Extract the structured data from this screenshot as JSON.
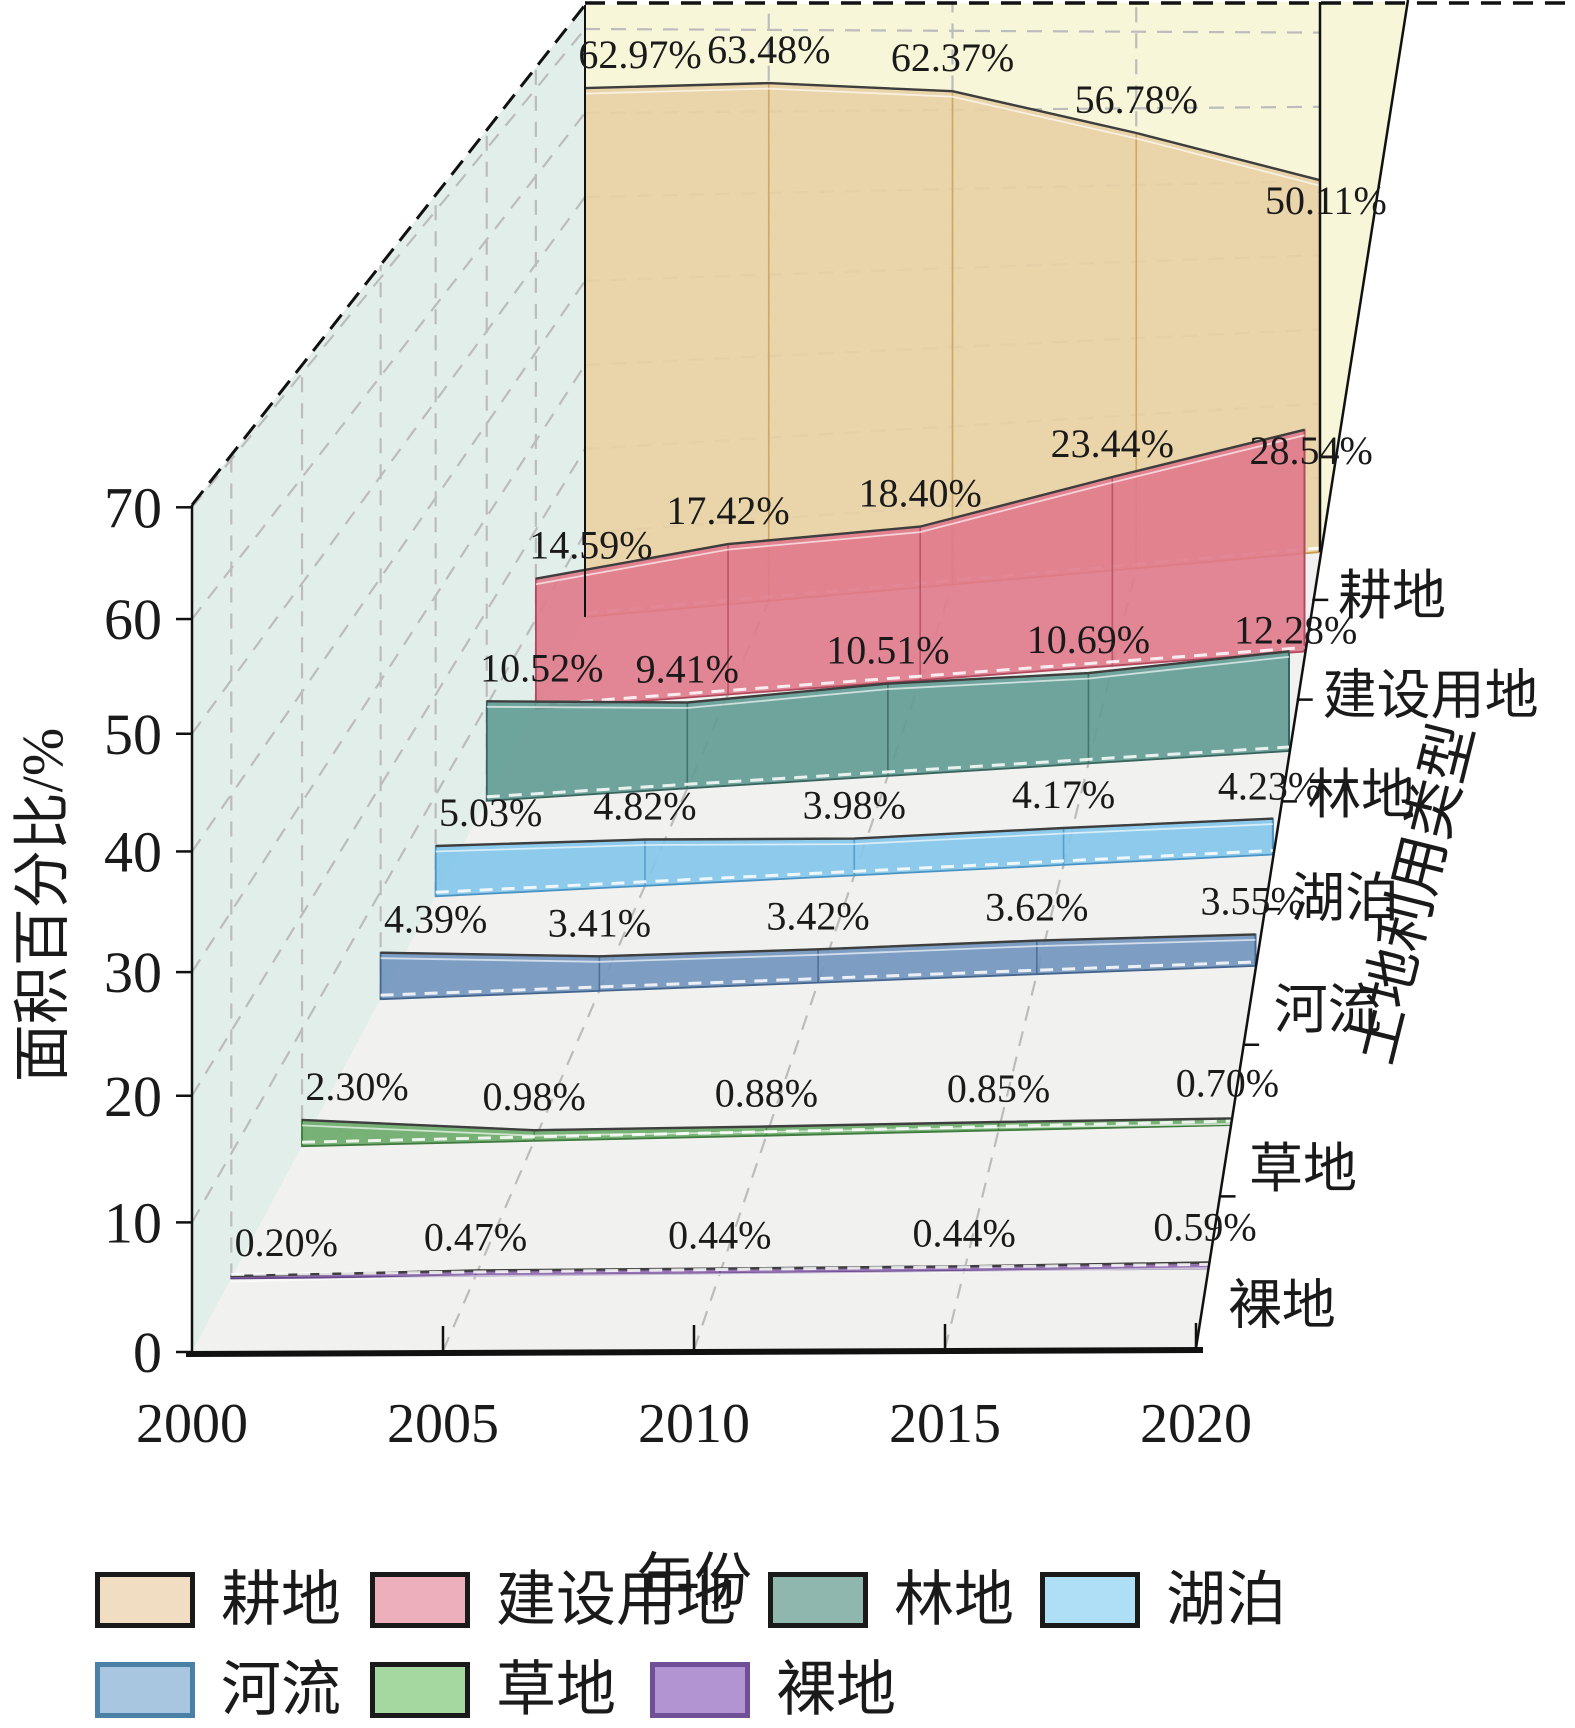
{
  "chart_data": {
    "type": "area",
    "projection": "3d-ribbon",
    "x": [
      2000,
      2005,
      2010,
      2015,
      2020
    ],
    "xlabel": "年份",
    "ylabel": "面积百分比/%",
    "zlabel": "土地利用类型",
    "ylim": [
      0,
      70
    ],
    "yticks": [
      0,
      10,
      20,
      30,
      40,
      50,
      60,
      70
    ],
    "grid": true,
    "value_label_format": "0.00%",
    "series": [
      {
        "id": "cultivated-land",
        "name": "耕地",
        "values": [
          62.97,
          63.48,
          62.37,
          56.78,
          50.11
        ],
        "fill": "#e8d0a4",
        "edge": "#c89c52",
        "legend_fill": "#f0ddc2",
        "legend_border": "#1a1a1a"
      },
      {
        "id": "construction-land",
        "name": "建设用地",
        "values": [
          14.59,
          17.42,
          18.4,
          23.44,
          28.54
        ],
        "fill": "#e0798b",
        "edge": "#b04a5e",
        "legend_fill": "#edafbb",
        "legend_border": "#1a1a1a"
      },
      {
        "id": "forest",
        "name": "林地",
        "values": [
          10.52,
          9.41,
          10.51,
          10.69,
          12.28
        ],
        "fill": "#609b93",
        "edge": "#38665e",
        "legend_fill": "#8fb7ae",
        "legend_border": "#1a1a1a"
      },
      {
        "id": "lake",
        "name": "湖泊",
        "values": [
          5.03,
          4.82,
          3.98,
          4.17,
          4.23
        ],
        "fill": "#82c5ea",
        "edge": "#4a94c4",
        "legend_fill": "#aedff7",
        "legend_border": "#1a1a1a"
      },
      {
        "id": "river",
        "name": "河流",
        "values": [
          4.39,
          3.41,
          3.42,
          3.62,
          3.55
        ],
        "fill": "#7093bd",
        "edge": "#44658e",
        "legend_fill": "#a9c6e0",
        "legend_border": "#4a7fa6"
      },
      {
        "id": "grassland",
        "name": "草地",
        "values": [
          2.3,
          0.98,
          0.88,
          0.85,
          0.7
        ],
        "fill": "#69aa67",
        "edge": "#3f7a3e",
        "legend_fill": "#a5d8a1",
        "legend_border": "#1a1a1a"
      },
      {
        "id": "bare-land",
        "name": "裸地",
        "values": [
          0.2,
          0.47,
          0.44,
          0.44,
          0.59
        ],
        "fill": "#8a64ab",
        "edge": "#66458a",
        "legend_fill": "#b394d3",
        "legend_border": "#6f4f96"
      }
    ],
    "legend_row_break": 4,
    "panes": {
      "left_wall": "#e2eeea",
      "back_wall": "#f7f6d8",
      "floor": "#f1f1ef",
      "grid_color": "#bcbcbc"
    }
  }
}
